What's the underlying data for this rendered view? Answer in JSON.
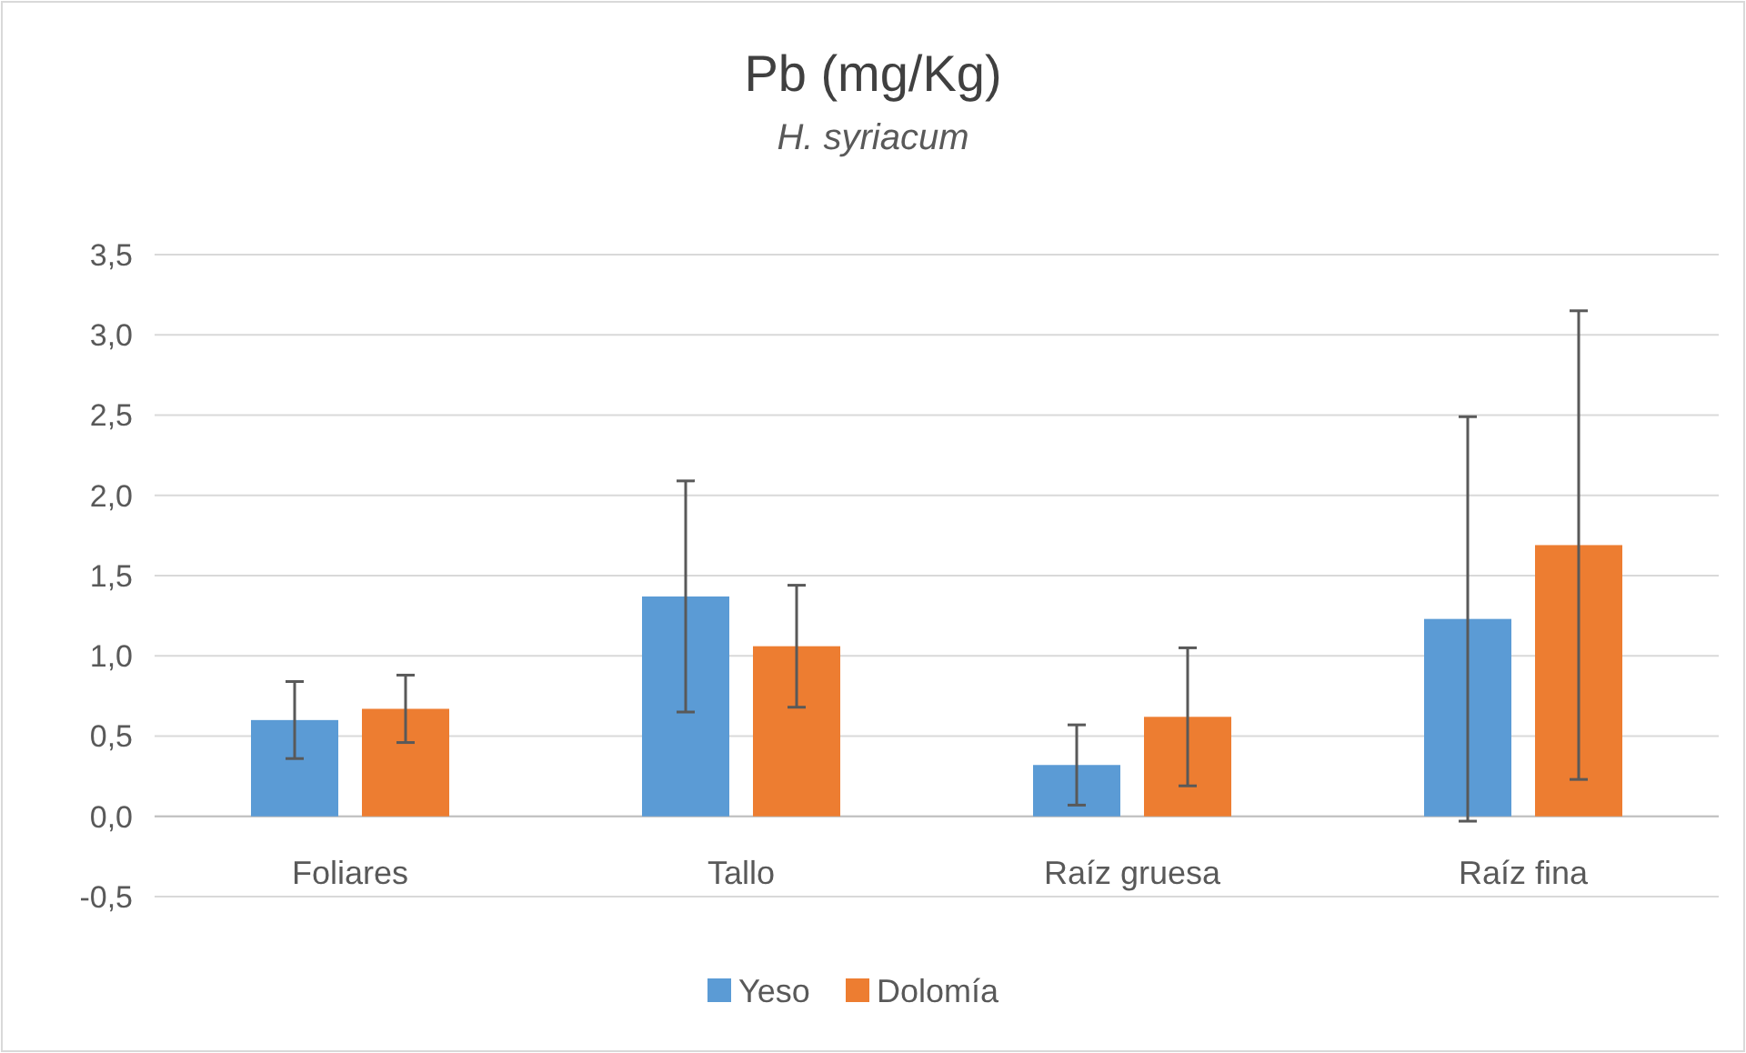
{
  "chart_data": {
    "type": "bar",
    "title": "Pb (mg/Kg)",
    "subtitle": "H. syriacum",
    "categories": [
      "Foliares",
      "Tallo",
      "Raíz gruesa",
      "Raíz fina"
    ],
    "series": [
      {
        "name": "Yeso",
        "color": "#5b9bd5",
        "values": [
          0.6,
          1.37,
          0.32,
          1.23
        ],
        "errors": [
          0.24,
          0.72,
          0.25,
          1.26
        ]
      },
      {
        "name": "Dolomía",
        "color": "#ed7d31",
        "values": [
          0.67,
          1.06,
          0.62,
          1.69
        ],
        "errors": [
          0.21,
          0.38,
          0.43,
          1.46
        ]
      }
    ],
    "ylim": [
      -0.5,
      3.5
    ],
    "yticks": [
      {
        "value": -0.5,
        "label": "-0,5"
      },
      {
        "value": 0,
        "label": "0,0"
      },
      {
        "value": 0.5,
        "label": "0,5"
      },
      {
        "value": 1,
        "label": "1,0"
      },
      {
        "value": 1.5,
        "label": "1,5"
      },
      {
        "value": 2,
        "label": "2,0"
      },
      {
        "value": 2.5,
        "label": "2,5"
      },
      {
        "value": 3,
        "label": "3,0"
      },
      {
        "value": 3.5,
        "label": "3,5"
      }
    ],
    "grid": "y",
    "legend": "bottom"
  }
}
